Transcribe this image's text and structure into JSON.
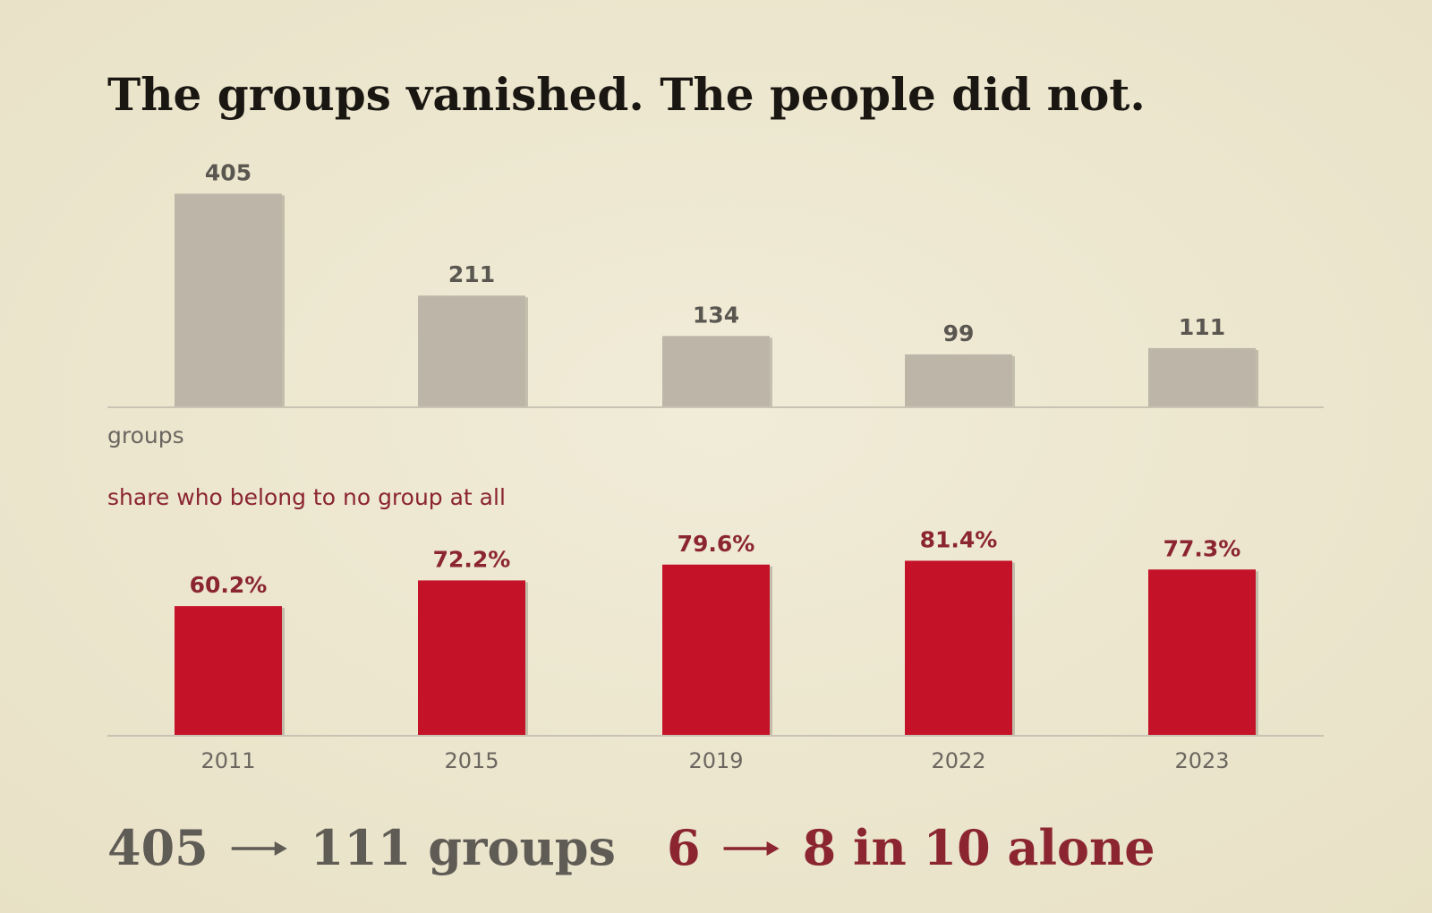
{
  "title": "The groups vanished. The people did not.",
  "chart_data": [
    {
      "type": "bar",
      "label": "groups",
      "values": [
        405,
        211,
        134,
        99,
        111
      ],
      "color": "#bdb6a8",
      "ylim": [
        0,
        450
      ]
    },
    {
      "type": "bar",
      "subtitle": "share who belong to no group at all",
      "categories": [
        "2011",
        "2015",
        "2019",
        "2022",
        "2023"
      ],
      "values": [
        60.2,
        72.2,
        79.6,
        81.4,
        77.3
      ],
      "value_labels": [
        "60.2%",
        "72.2%",
        "79.6%",
        "81.4%",
        "77.3%"
      ],
      "color": "#c41228",
      "ylim": [
        0,
        100
      ]
    }
  ],
  "footer": [
    {
      "from": "405",
      "to": "111 groups"
    },
    {
      "from": "6",
      "to": "8 in 10 alone"
    }
  ]
}
